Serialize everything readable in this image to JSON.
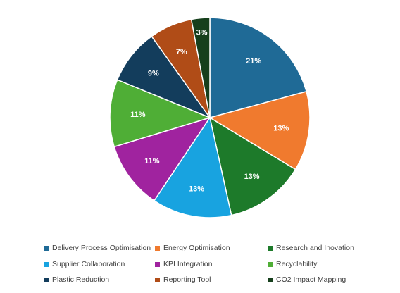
{
  "chart_data": {
    "type": "pie",
    "title": "",
    "legend_position": "bottom",
    "slices": [
      {
        "label": "Delivery Process Optimisation",
        "value": 21,
        "display": "21%",
        "color": "#1f6a96"
      },
      {
        "label": "Energy Optimisation",
        "value": 13,
        "display": "13%",
        "color": "#f07a2e"
      },
      {
        "label": "Research and Inovation",
        "value": 13,
        "display": "13%",
        "color": "#1d7a2a"
      },
      {
        "label": "Supplier Collaboration",
        "value": 13,
        "display": "13%",
        "color": "#18a3e0"
      },
      {
        "label": "KPI Integration",
        "value": 11,
        "display": "11%",
        "color": "#a0239f"
      },
      {
        "label": "Recyclability",
        "value": 11,
        "display": "11%",
        "color": "#4fae36"
      },
      {
        "label": "Plastic Reduction",
        "value": 9,
        "display": "9%",
        "color": "#133d5c"
      },
      {
        "label": "Reporting Tool",
        "value": 7,
        "display": "7%",
        "color": "#b04c17"
      },
      {
        "label": "CO2 Impact Mapping",
        "value": 3,
        "display": "3%",
        "color": "#163f1c"
      }
    ]
  }
}
